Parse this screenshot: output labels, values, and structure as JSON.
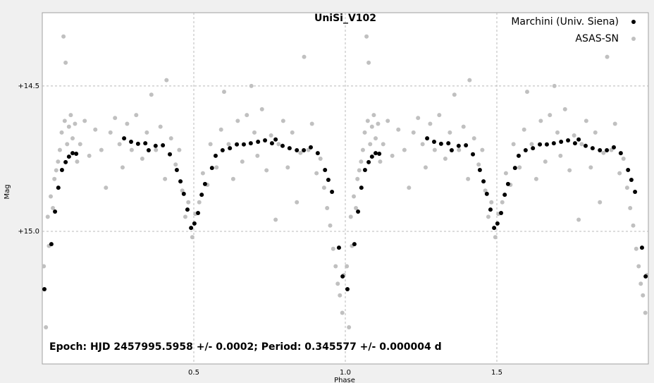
{
  "chart_data": {
    "type": "scatter",
    "title": "UniSi_V102",
    "x_label": "Phase",
    "y_label": "Mag",
    "annotation": "Epoch: HJD 2457995.5958 +/- 0.0002; Period: 0.345577 +/- 0.000004 d",
    "xlim": [
      0,
      2
    ],
    "xticks": [
      0.5,
      {
        "value": 1,
        "label": "1.0"
      },
      1.5
    ],
    "ylim": [
      15.456,
      14.248
    ],
    "yticks": [
      {
        "value": 14.5,
        "label": "+14.5"
      },
      {
        "value": 15,
        "label": "+15.0"
      }
    ],
    "grid": true,
    "legend": "upper right",
    "series": [
      {
        "name": "Marchini (Univ. Siena)",
        "color": "#000000",
        "x": [
          0.007,
          0.03,
          0.042,
          0.053,
          0.065,
          0.077,
          0.088,
          0.1,
          0.112,
          0.27,
          0.293,
          0.316,
          0.34,
          0.351,
          0.374,
          0.398,
          0.421,
          0.444,
          0.456,
          0.467,
          0.479,
          0.491,
          0.502,
          0.514,
          0.526,
          0.537,
          0.56,
          0.572,
          0.595,
          0.619,
          0.642,
          0.665,
          0.688,
          0.712,
          0.735,
          0.758,
          0.77,
          0.793,
          0.816,
          0.84,
          0.863,
          0.886,
          0.909,
          0.933,
          0.944,
          0.956,
          0.979,
          0.991,
          1.007,
          1.03,
          1.042,
          1.053,
          1.065,
          1.077,
          1.088,
          1.1,
          1.112,
          1.27,
          1.293,
          1.316,
          1.34,
          1.351,
          1.374,
          1.398,
          1.421,
          1.444,
          1.456,
          1.467,
          1.479,
          1.491,
          1.502,
          1.514,
          1.526,
          1.537,
          1.56,
          1.572,
          1.595,
          1.619,
          1.642,
          1.665,
          1.688,
          1.712,
          1.735,
          1.758,
          1.77,
          1.793,
          1.816,
          1.84,
          1.863,
          1.886,
          1.909,
          1.933,
          1.944,
          1.956,
          1.979,
          1.991
        ],
        "values": [
          15.199,
          15.044,
          14.932,
          14.85,
          14.789,
          14.762,
          14.743,
          14.731,
          14.733,
          14.68,
          14.692,
          14.699,
          14.697,
          14.721,
          14.706,
          14.704,
          14.735,
          14.789,
          14.828,
          14.871,
          14.925,
          14.988,
          14.973,
          14.937,
          14.874,
          14.837,
          14.782,
          14.74,
          14.721,
          14.714,
          14.701,
          14.701,
          14.697,
          14.692,
          14.687,
          14.697,
          14.684,
          14.706,
          14.714,
          14.721,
          14.721,
          14.711,
          14.731,
          14.789,
          14.823,
          14.864,
          15.056,
          15.155,
          15.199,
          15.044,
          14.932,
          14.85,
          14.789,
          14.762,
          14.743,
          14.731,
          14.733,
          14.68,
          14.692,
          14.699,
          14.697,
          14.721,
          14.706,
          14.704,
          14.735,
          14.789,
          14.828,
          14.871,
          14.925,
          14.988,
          14.973,
          14.937,
          14.874,
          14.837,
          14.782,
          14.74,
          14.721,
          14.714,
          14.701,
          14.701,
          14.697,
          14.692,
          14.687,
          14.697,
          14.684,
          14.706,
          14.714,
          14.721,
          14.721,
          14.711,
          14.731,
          14.789,
          14.823,
          14.864,
          15.056,
          15.155
        ]
      },
      {
        "name": "ASAS-SN",
        "color": "#c0c0c0",
        "x": [
          0.005,
          0.012,
          0.018,
          0.022,
          0.028,
          0.035,
          0.04,
          0.046,
          0.052,
          0.058,
          0.064,
          0.07,
          0.074,
          0.077,
          0.082,
          0.088,
          0.094,
          0.1,
          0.108,
          0.115,
          0.125,
          0.14,
          0.155,
          0.175,
          0.195,
          0.21,
          0.225,
          0.24,
          0.255,
          0.265,
          0.28,
          0.295,
          0.31,
          0.33,
          0.345,
          0.36,
          0.375,
          0.39,
          0.405,
          0.41,
          0.425,
          0.44,
          0.452,
          0.462,
          0.472,
          0.482,
          0.495,
          0.505,
          0.518,
          0.53,
          0.545,
          0.555,
          0.575,
          0.59,
          0.6,
          0.615,
          0.63,
          0.645,
          0.66,
          0.675,
          0.69,
          0.7,
          0.71,
          0.725,
          0.74,
          0.755,
          0.77,
          0.78,
          0.795,
          0.81,
          0.825,
          0.84,
          0.852,
          0.864,
          0.878,
          0.89,
          0.905,
          0.918,
          0.93,
          0.94,
          0.95,
          0.96,
          0.968,
          0.975,
          0.982,
          0.99,
          0.995,
          1.005,
          1.012,
          1.018,
          1.022,
          1.028,
          1.035,
          1.04,
          1.046,
          1.052,
          1.058,
          1.064,
          1.07,
          1.074,
          1.077,
          1.082,
          1.088,
          1.094,
          1.1,
          1.108,
          1.115,
          1.125,
          1.14,
          1.155,
          1.175,
          1.195,
          1.21,
          1.225,
          1.24,
          1.255,
          1.265,
          1.28,
          1.295,
          1.31,
          1.33,
          1.345,
          1.36,
          1.375,
          1.39,
          1.405,
          1.41,
          1.425,
          1.44,
          1.452,
          1.462,
          1.472,
          1.482,
          1.495,
          1.505,
          1.518,
          1.53,
          1.545,
          1.555,
          1.575,
          1.59,
          1.6,
          1.615,
          1.63,
          1.645,
          1.66,
          1.675,
          1.69,
          1.7,
          1.71,
          1.725,
          1.74,
          1.755,
          1.77,
          1.78,
          1.795,
          1.81,
          1.825,
          1.84,
          1.852,
          1.864,
          1.878,
          1.89,
          1.905,
          1.918,
          1.93,
          1.94,
          1.95,
          1.96,
          1.968,
          1.975,
          1.982,
          1.99,
          1.995
        ],
        "values": [
          15.12,
          15.33,
          14.95,
          15.05,
          14.88,
          14.92,
          14.82,
          14.79,
          14.76,
          14.72,
          14.66,
          14.33,
          14.62,
          14.42,
          14.7,
          14.64,
          14.6,
          14.68,
          14.63,
          14.76,
          14.7,
          14.62,
          14.74,
          14.65,
          14.72,
          14.85,
          14.66,
          14.61,
          14.7,
          14.78,
          14.63,
          14.72,
          14.6,
          14.75,
          14.66,
          14.53,
          14.72,
          14.64,
          14.82,
          14.48,
          14.68,
          14.77,
          14.72,
          14.86,
          14.95,
          14.9,
          15.02,
          14.94,
          14.9,
          14.8,
          14.84,
          14.7,
          14.78,
          14.65,
          14.52,
          14.7,
          14.82,
          14.62,
          14.76,
          14.6,
          14.5,
          14.66,
          14.74,
          14.58,
          14.79,
          14.67,
          14.96,
          14.7,
          14.62,
          14.78,
          14.66,
          14.9,
          14.73,
          14.4,
          14.72,
          14.63,
          14.8,
          14.75,
          14.85,
          14.92,
          14.98,
          15.06,
          15.12,
          15.18,
          15.22,
          15.28,
          15.15,
          15.12,
          15.33,
          14.95,
          15.05,
          14.88,
          14.92,
          14.82,
          14.79,
          14.76,
          14.72,
          14.66,
          14.33,
          14.62,
          14.42,
          14.7,
          14.64,
          14.6,
          14.68,
          14.63,
          14.76,
          14.7,
          14.62,
          14.74,
          14.65,
          14.72,
          14.85,
          14.66,
          14.61,
          14.7,
          14.78,
          14.63,
          14.72,
          14.6,
          14.75,
          14.66,
          14.53,
          14.72,
          14.64,
          14.82,
          14.48,
          14.68,
          14.77,
          14.72,
          14.86,
          14.95,
          14.9,
          15.02,
          14.94,
          14.9,
          14.8,
          14.84,
          14.7,
          14.78,
          14.65,
          14.52,
          14.7,
          14.82,
          14.62,
          14.76,
          14.6,
          14.5,
          14.66,
          14.74,
          14.58,
          14.79,
          14.67,
          14.96,
          14.7,
          14.62,
          14.78,
          14.66,
          14.9,
          14.73,
          14.4,
          14.72,
          14.63,
          14.8,
          14.75,
          14.85,
          14.92,
          14.98,
          15.06,
          15.12,
          15.18,
          15.22,
          15.28,
          15.15
        ]
      }
    ]
  }
}
